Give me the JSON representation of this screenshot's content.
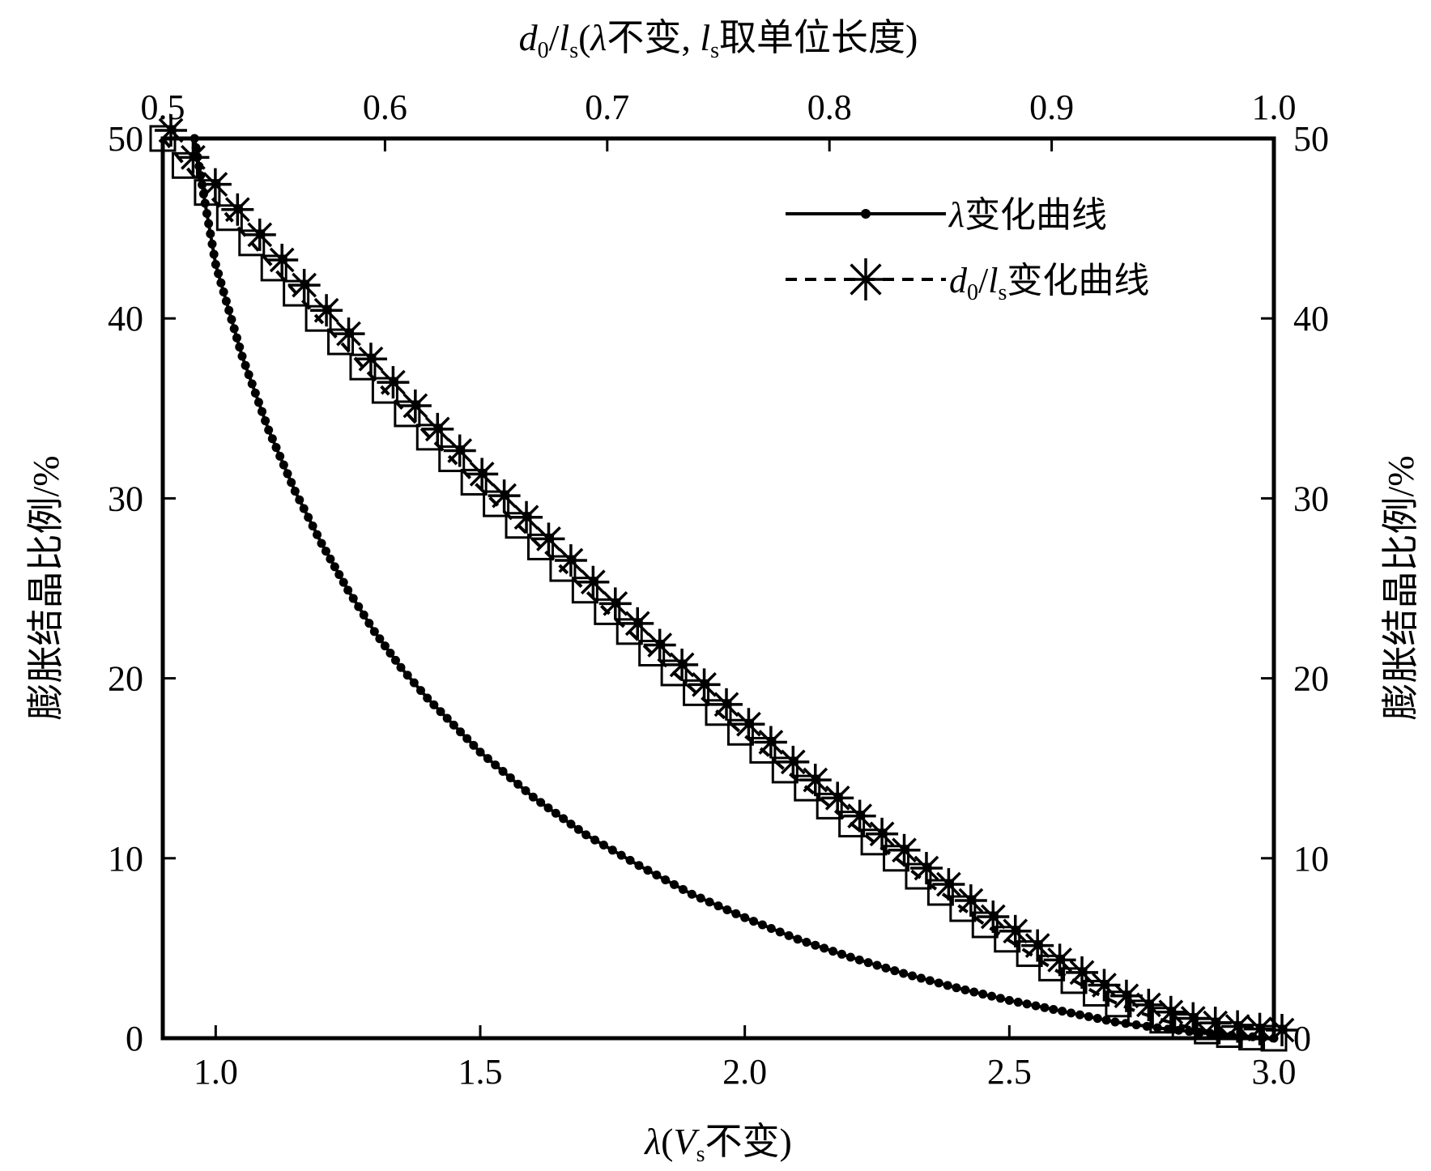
{
  "chart_data": {
    "type": "line",
    "x_bottom": {
      "label": "λ(Vs不变)",
      "range": [
        0.9,
        3.0
      ],
      "ticks": [
        1.0,
        1.5,
        2.0,
        2.5,
        3.0
      ],
      "tick_labels": [
        "1.0",
        "1.5",
        "2.0",
        "2.5",
        "3.0"
      ]
    },
    "x_top": {
      "label": "d0/ls(λ不变, ls取单位长度)",
      "range": [
        0.5,
        1.0
      ],
      "ticks": [
        0.5,
        0.6,
        0.7,
        0.8,
        0.9,
        1.0
      ],
      "tick_labels": [
        "0.5",
        "0.6",
        "0.7",
        "0.8",
        "0.9",
        "1.0"
      ]
    },
    "y_left": {
      "label": "膨胀结晶比例/%",
      "range": [
        0,
        50
      ],
      "ticks": [
        0,
        10,
        20,
        30,
        40,
        50
      ],
      "tick_labels": [
        "0",
        "10",
        "20",
        "30",
        "40",
        "50"
      ]
    },
    "y_right": {
      "label": "膨胀结晶比例/%",
      "range": [
        0,
        50
      ],
      "ticks": [
        0,
        10,
        20,
        30,
        40,
        50
      ],
      "tick_labels": [
        "0",
        "10",
        "20",
        "30",
        "40",
        "50"
      ]
    },
    "grid": false,
    "legend_position": "top-right",
    "series": [
      {
        "name": "λ变化曲线",
        "axis": "bottom",
        "style": "solid-dot",
        "x": [
          0.96,
          0.98,
          1.0,
          1.05,
          1.1,
          1.15,
          1.2,
          1.25,
          1.3,
          1.35,
          1.4,
          1.5,
          1.6,
          1.7,
          1.8,
          1.9,
          2.0,
          2.1,
          2.2,
          2.3,
          2.4,
          2.5,
          2.6,
          2.7,
          2.8,
          2.9,
          3.0
        ],
        "y": [
          50.0,
          46.4,
          43.0,
          37.9,
          33.8,
          30.4,
          27.5,
          24.9,
          22.6,
          20.6,
          18.9,
          15.9,
          13.4,
          11.3,
          9.6,
          8.0,
          6.7,
          5.5,
          4.5,
          3.6,
          2.8,
          2.1,
          1.5,
          0.9,
          0.5,
          0.2,
          0.0
        ]
      },
      {
        "name": "d0/ls变化曲线",
        "axis": "top",
        "style": "dashed-star",
        "x": [
          0.5,
          0.51,
          0.52,
          0.53,
          0.54,
          0.55,
          0.56,
          0.57,
          0.58,
          0.59,
          0.6,
          0.61,
          0.62,
          0.63,
          0.64,
          0.65,
          0.66,
          0.67,
          0.68,
          0.69,
          0.7,
          0.71,
          0.72,
          0.73,
          0.74,
          0.75,
          0.76,
          0.77,
          0.78,
          0.79,
          0.8,
          0.81,
          0.82,
          0.83,
          0.84,
          0.85,
          0.86,
          0.87,
          0.88,
          0.89,
          0.9,
          0.91,
          0.92,
          0.93,
          0.94,
          0.95,
          0.96,
          0.97,
          0.98,
          0.99,
          1.0
        ],
        "y": [
          50.0,
          48.5,
          47.0,
          45.6,
          44.2,
          42.8,
          41.4,
          40.0,
          38.7,
          37.3,
          36.0,
          34.7,
          33.4,
          32.2,
          30.9,
          29.7,
          28.5,
          27.3,
          26.1,
          24.9,
          23.7,
          22.6,
          21.4,
          20.3,
          19.2,
          18.1,
          17.0,
          16.0,
          14.9,
          13.9,
          12.9,
          11.9,
          10.9,
          10.0,
          9.0,
          8.1,
          7.2,
          6.3,
          5.5,
          4.7,
          3.9,
          3.2,
          2.5,
          1.9,
          1.4,
          1.0,
          0.65,
          0.4,
          0.2,
          0.06,
          0.0
        ]
      }
    ]
  }
}
